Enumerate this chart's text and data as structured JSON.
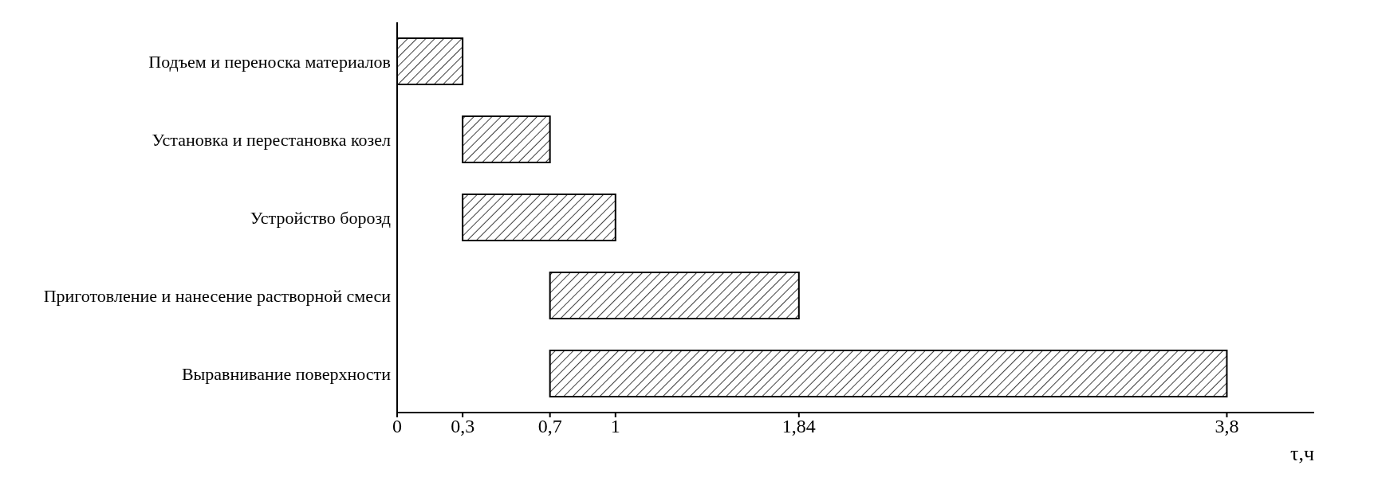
{
  "chart_data": {
    "type": "bar",
    "orientation": "horizontal",
    "categories": [
      "Подъем и переноска материалов",
      "Установка и перестановка козел",
      "Устройство борозд",
      "Приготовление и нанесение растворной смеси",
      "Выравнивание поверхности"
    ],
    "base": [
      0,
      0.3,
      0.3,
      0.7,
      0.7
    ],
    "values": [
      0.3,
      0.4,
      0.7,
      1.14,
      3.1
    ],
    "color": "#000000",
    "xlabel": "τ,ч",
    "xlim": [
      0,
      4.2
    ],
    "xticks": [
      0,
      {
        "value": 0.3,
        "label": "0,3"
      },
      {
        "value": 0.7,
        "label": "0,7"
      },
      1,
      {
        "value": 1.84,
        "label": "1,84"
      },
      {
        "value": 3.8,
        "label": "3,8"
      }
    ]
  }
}
